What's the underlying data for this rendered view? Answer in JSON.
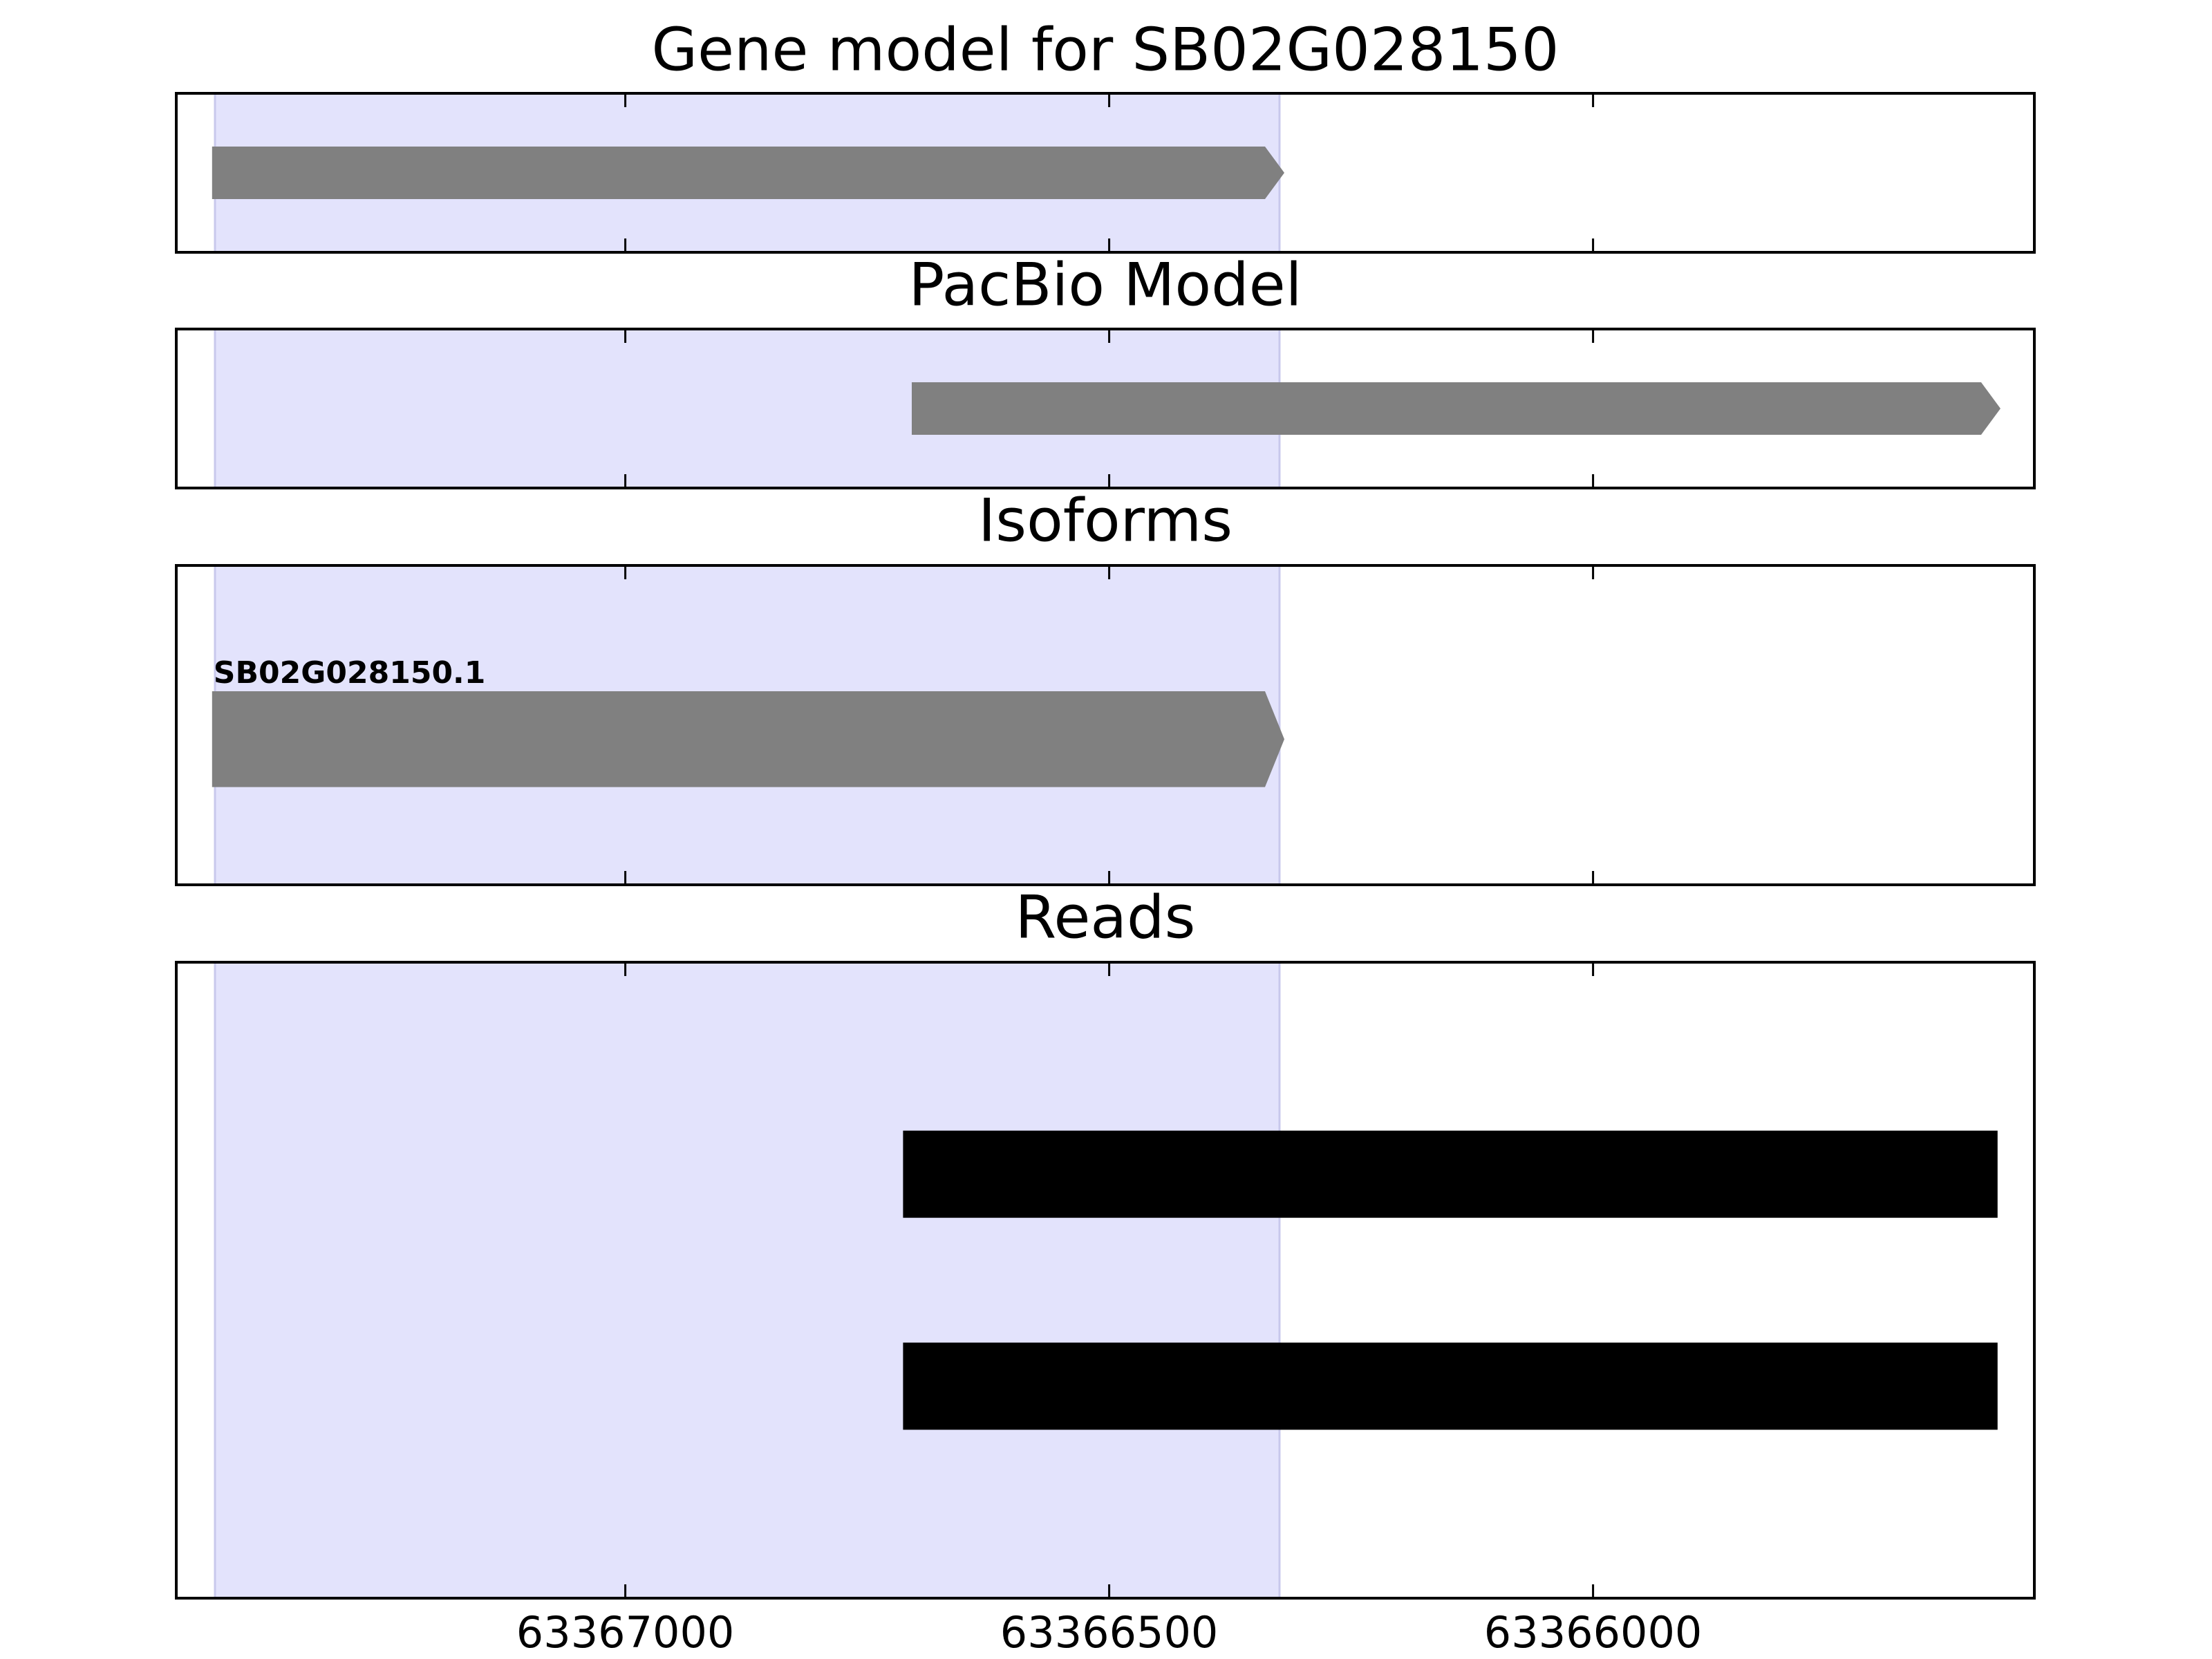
{
  "chart_data": [
    {
      "type": "track",
      "title": "Gene model for SB02G028150",
      "xlim": [
        63367464,
        63365544
      ],
      "xticks": [
        63367000,
        63366500,
        63366000
      ],
      "show_xtick_labels": false,
      "highlight": {
        "start": 63367424,
        "end": 63366324,
        "color": "#e3e3fc"
      },
      "features": [
        {
          "start": 63367427,
          "end": 63366319,
          "shape": "arrow",
          "color": "#808080"
        }
      ]
    },
    {
      "type": "track",
      "title": "PacBio Model",
      "xlim": [
        63367464,
        63365544
      ],
      "xticks": [
        63367000,
        63366500,
        63366000
      ],
      "show_xtick_labels": false,
      "highlight": {
        "start": 63367424,
        "end": 63366324,
        "color": "#e3e3fc"
      },
      "features": [
        {
          "start": 63366704,
          "end": 63365579,
          "shape": "arrow",
          "color": "#808080"
        }
      ]
    },
    {
      "type": "track",
      "title": "Isoforms",
      "xlim": [
        63367464,
        63365544
      ],
      "xticks": [
        63367000,
        63366500,
        63366000
      ],
      "show_xtick_labels": false,
      "highlight": {
        "start": 63367424,
        "end": 63366324,
        "color": "#e3e3fc"
      },
      "features": [
        {
          "start": 63367427,
          "end": 63366319,
          "shape": "arrow",
          "color": "#808080",
          "label": "SB02G028150.1"
        }
      ]
    },
    {
      "type": "track",
      "title": "Reads",
      "xlim": [
        63367464,
        63365544
      ],
      "xticks": [
        63367000,
        63366500,
        63366000
      ],
      "show_xtick_labels": true,
      "highlight": {
        "start": 63367424,
        "end": 63366324,
        "color": "#e3e3fc"
      },
      "features": [
        {
          "start": 63366713,
          "end": 63365582,
          "shape": "box",
          "color": "#000000"
        },
        {
          "start": 63366713,
          "end": 63365582,
          "shape": "box",
          "color": "#000000"
        }
      ]
    }
  ]
}
